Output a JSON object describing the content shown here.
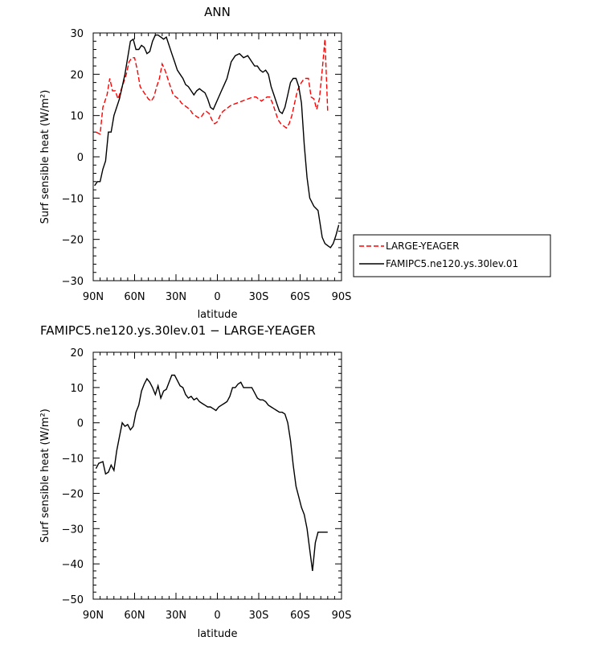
{
  "chart_data": [
    {
      "type": "line",
      "title": "ANN",
      "xlabel": "latitude",
      "ylabel": "Surf sensible heat (W/m²)",
      "xlim": [
        90,
        -90
      ],
      "ylim": [
        -30,
        30
      ],
      "x_ticks": [
        {
          "v": 90,
          "label": "90N"
        },
        {
          "v": 60,
          "label": "60N"
        },
        {
          "v": 30,
          "label": "30N"
        },
        {
          "v": 0,
          "label": "0"
        },
        {
          "v": -30,
          "label": "30S"
        },
        {
          "v": -60,
          "label": "60S"
        },
        {
          "v": -90,
          "label": "90S"
        }
      ],
      "y_ticks": [
        {
          "v": 30,
          "label": "30"
        },
        {
          "v": 20,
          "label": "20"
        },
        {
          "v": 10,
          "label": "10"
        },
        {
          "v": 0,
          "label": "0"
        },
        {
          "v": -10,
          "label": "−10"
        },
        {
          "v": -20,
          "label": "−20"
        },
        {
          "v": -30,
          "label": "−30"
        }
      ],
      "legend": "outside-right",
      "series": [
        {
          "name": "LARGE-YEAGER",
          "color": "#ff0000",
          "dash": "dashed",
          "x": [
            88,
            85,
            83,
            80,
            78,
            76,
            74,
            72,
            70,
            68,
            66,
            64,
            62,
            60,
            58,
            56,
            54,
            52,
            50,
            48,
            46,
            44,
            42,
            40,
            38,
            36,
            34,
            32,
            30,
            28,
            26,
            24,
            22,
            20,
            18,
            16,
            14,
            12,
            10,
            8,
            6,
            4,
            2,
            0,
            -2,
            -4,
            -6,
            -8,
            -10,
            -14,
            -18,
            -22,
            -26,
            -28,
            -30,
            -32,
            -34,
            -36,
            -38,
            -40,
            -42,
            -44,
            -46,
            -48,
            -50,
            -52,
            -54,
            -56,
            -58,
            -60,
            -62,
            -64,
            -66,
            -68,
            -70,
            -72,
            -74,
            -76,
            -78,
            -80
          ],
          "y": [
            6,
            5.5,
            12,
            15,
            19,
            16,
            16,
            14,
            16,
            18,
            20,
            23,
            24,
            24,
            21,
            17,
            16,
            15,
            14,
            13.5,
            14.5,
            17,
            19,
            22.5,
            21,
            19,
            17,
            15,
            14.5,
            14,
            13,
            12.5,
            12,
            11.5,
            10.5,
            10,
            9.5,
            9.5,
            10.5,
            11,
            10.5,
            9,
            8,
            8.5,
            10,
            11,
            11.5,
            12,
            12.5,
            13,
            13.5,
            14,
            14.5,
            14.5,
            14,
            13.5,
            14,
            14.5,
            14.5,
            13,
            11,
            9,
            8,
            7.5,
            7,
            8,
            10,
            13,
            16,
            17.5,
            18.5,
            19,
            19,
            14.5,
            14,
            11.5,
            14,
            21,
            28.5,
            11
          ]
        },
        {
          "name": "FAMIPC5.ne120.ys.30lev.01",
          "color": "#000000",
          "dash": "solid",
          "x": [
            89,
            87,
            85,
            83,
            81,
            79,
            77,
            75,
            73,
            71,
            69,
            67,
            65,
            63,
            61,
            59,
            57,
            55,
            53,
            51,
            49,
            47,
            45,
            43,
            41,
            39,
            37,
            35,
            33,
            31,
            29,
            27,
            25,
            23,
            21,
            19,
            17,
            15,
            13,
            11,
            9,
            7,
            5,
            3,
            1,
            -1,
            -3,
            -5,
            -7,
            -10,
            -13,
            -16,
            -19,
            -22,
            -25,
            -27,
            -29,
            -31,
            -33,
            -35,
            -37,
            -39,
            -41,
            -43,
            -45,
            -47,
            -49,
            -51,
            -53,
            -55,
            -57,
            -59,
            -61,
            -63,
            -65,
            -67,
            -70,
            -73,
            -76,
            -78,
            -80,
            -82,
            -84,
            -86,
            -88
          ],
          "y": [
            -7,
            -6,
            -6,
            -3,
            -1,
            6,
            6,
            10,
            12,
            14,
            17,
            20,
            24,
            28,
            28.5,
            26,
            26,
            27,
            26.5,
            25,
            25.5,
            28,
            29.5,
            29.5,
            29,
            28.5,
            29,
            27,
            25,
            23,
            21,
            20,
            19,
            17.5,
            17,
            16,
            15,
            16,
            16.5,
            16,
            15.5,
            14,
            12,
            11.5,
            13,
            14.5,
            16,
            17.5,
            19,
            23,
            24.5,
            25,
            24,
            24.5,
            23,
            22,
            22,
            21,
            20.5,
            21,
            20,
            17,
            15,
            13,
            11,
            10.5,
            12,
            15,
            18,
            19,
            19,
            17,
            13,
            3,
            -5,
            -10,
            -12,
            -13,
            -19.5,
            -21,
            -21.5,
            -22,
            -21,
            -19,
            -16.5
          ]
        }
      ]
    },
    {
      "type": "line",
      "title": "FAMIPC5.ne120.ys.30lev.01 − LARGE-YEAGER",
      "xlabel": "latitude",
      "ylabel": "Surf sensible heat (W/m²)",
      "xlim": [
        90,
        -90
      ],
      "ylim": [
        -50,
        20
      ],
      "x_ticks": [
        {
          "v": 90,
          "label": "90N"
        },
        {
          "v": 60,
          "label": "60N"
        },
        {
          "v": 30,
          "label": "30N"
        },
        {
          "v": 0,
          "label": "0"
        },
        {
          "v": -30,
          "label": "30S"
        },
        {
          "v": -60,
          "label": "60S"
        },
        {
          "v": -90,
          "label": "90S"
        }
      ],
      "y_ticks": [
        {
          "v": 20,
          "label": "20"
        },
        {
          "v": 10,
          "label": "10"
        },
        {
          "v": 0,
          "label": "0"
        },
        {
          "v": -10,
          "label": "−10"
        },
        {
          "v": -20,
          "label": "−20"
        },
        {
          "v": -30,
          "label": "−30"
        },
        {
          "v": -40,
          "label": "−40"
        },
        {
          "v": -50,
          "label": "−50"
        }
      ],
      "series": [
        {
          "color": "#000000",
          "dash": "solid",
          "x": [
            88,
            86,
            83,
            81,
            79,
            77,
            75,
            73,
            71,
            69,
            67,
            65,
            63,
            61,
            59,
            57,
            55,
            53,
            51,
            49,
            47,
            45,
            43,
            41,
            39,
            37,
            35,
            33,
            31,
            29,
            27,
            25,
            23,
            21,
            19,
            17,
            15,
            13,
            11,
            9,
            7,
            5,
            3,
            1,
            -1,
            -3,
            -5,
            -7,
            -9,
            -11,
            -13,
            -15,
            -17,
            -19,
            -21,
            -23,
            -25,
            -27,
            -29,
            -31,
            -33,
            -35,
            -37,
            -39,
            -41,
            -43,
            -45,
            -47,
            -49,
            -51,
            -53,
            -55,
            -57,
            -59,
            -61,
            -63,
            -65,
            -67,
            -69,
            -71,
            -73,
            -75,
            -77,
            -79,
            -80
          ],
          "y": [
            -13,
            -11.5,
            -11,
            -14.5,
            -14,
            -12,
            -13.5,
            -8,
            -4,
            0,
            -1,
            -0.5,
            -2,
            -1,
            3,
            5,
            9,
            11,
            12.5,
            11.5,
            10,
            8,
            10.5,
            7,
            9,
            9.5,
            11.5,
            13.5,
            13.5,
            12,
            10.5,
            10,
            8,
            7,
            7.5,
            6.5,
            7,
            6,
            5.5,
            5,
            4.5,
            4.5,
            4,
            3.5,
            4.5,
            5,
            5.5,
            6,
            7.5,
            10,
            10,
            11,
            11.5,
            10,
            10,
            10,
            10,
            8.5,
            7,
            6.5,
            6.5,
            6,
            5,
            4.5,
            4,
            3.5,
            3,
            3,
            2.5,
            0,
            -5,
            -12,
            -18,
            -21,
            -24,
            -26,
            -30,
            -36,
            -42,
            -34,
            -31,
            -31,
            -31,
            -31,
            -31
          ]
        }
      ]
    }
  ]
}
